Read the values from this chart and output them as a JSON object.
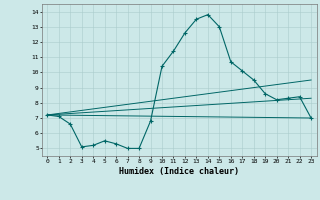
{
  "x_range": [
    -0.5,
    23.5
  ],
  "y_range": [
    4.5,
    14.5
  ],
  "background_color": "#cce8e8",
  "grid_color": "#aacccc",
  "line_color": "#006666",
  "xlabel": "Humidex (Indice chaleur)",
  "yticks": [
    5,
    6,
    7,
    8,
    9,
    10,
    11,
    12,
    13,
    14
  ],
  "xticks": [
    0,
    1,
    2,
    3,
    4,
    5,
    6,
    7,
    8,
    9,
    10,
    11,
    12,
    13,
    14,
    15,
    16,
    17,
    18,
    19,
    20,
    21,
    22,
    23
  ],
  "line1_x": [
    0,
    1,
    2,
    3,
    4,
    5,
    6,
    7,
    8,
    9,
    10,
    11,
    12,
    13,
    14,
    15,
    16,
    17,
    18,
    19,
    20,
    21,
    22,
    23
  ],
  "line1_y": [
    7.2,
    7.1,
    6.6,
    5.1,
    5.2,
    5.5,
    5.3,
    5.0,
    5.0,
    6.8,
    10.4,
    11.4,
    12.6,
    13.5,
    13.8,
    13.0,
    10.7,
    10.1,
    9.5,
    8.6,
    8.2,
    8.3,
    8.4,
    7.0
  ],
  "line2_x": [
    0,
    23
  ],
  "line2_y": [
    7.2,
    9.5
  ],
  "line3_x": [
    0,
    23
  ],
  "line3_y": [
    7.2,
    8.3
  ],
  "line4_x": [
    0,
    23
  ],
  "line4_y": [
    7.2,
    7.0
  ],
  "figwidth": 3.2,
  "figheight": 2.0,
  "dpi": 100
}
